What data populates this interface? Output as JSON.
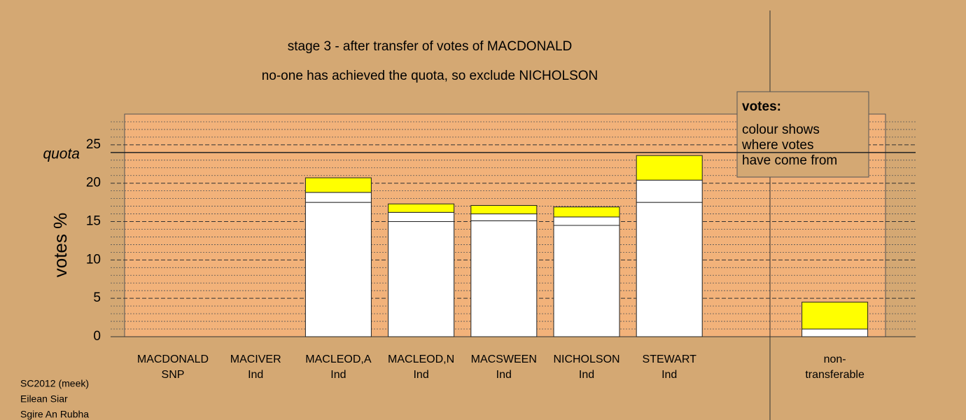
{
  "chart_data": {
    "type": "stacked-bar",
    "title": "stage 3 - after transfer of votes of MACDONALD",
    "subtitle": "no-one has achieved the quota, so exclude NICHOLSON",
    "y_label": "votes %",
    "categories": [
      [
        "MACDONALD",
        "SNP"
      ],
      [
        "MACIVER",
        "Ind"
      ],
      [
        "MACLEOD,A",
        "Ind"
      ],
      [
        "MACLEOD,N",
        "Ind"
      ],
      [
        "MACSWEEN",
        "Ind"
      ],
      [
        "NICHOLSON",
        "Ind"
      ],
      [
        "STEWART",
        "Ind"
      ],
      [
        "non-",
        "transferable"
      ]
    ],
    "series": [
      {
        "color": "#ffffff",
        "values": [
          0,
          0,
          17.5,
          15.0,
          15.1,
          14.5,
          17.5,
          1.0
        ]
      },
      {
        "color": "#ffffff",
        "values": [
          0,
          0,
          1.3,
          1.2,
          0.9,
          1.1,
          2.9,
          0
        ]
      },
      {
        "color": "#ffff00",
        "values": [
          0,
          0,
          1.9,
          1.1,
          1.1,
          1.3,
          3.2,
          3.5
        ]
      }
    ],
    "ylim": [
      0,
      29
    ],
    "yticks": [
      0,
      5,
      10,
      15,
      20,
      25
    ],
    "minor_yticks": [
      1,
      2,
      3,
      4,
      6,
      7,
      8,
      9,
      11,
      12,
      13,
      14,
      16,
      17,
      18,
      19,
      21,
      22,
      23,
      24,
      26,
      27,
      28
    ],
    "quota": {
      "label": "quota",
      "value": 24
    },
    "legend": {
      "title": "votes:",
      "lines": [
        "colour shows",
        "where votes",
        "have come from"
      ]
    },
    "footer": [
      "SC2012 (meek)",
      "Eilean Siar",
      "Sgire An Rubha"
    ]
  }
}
